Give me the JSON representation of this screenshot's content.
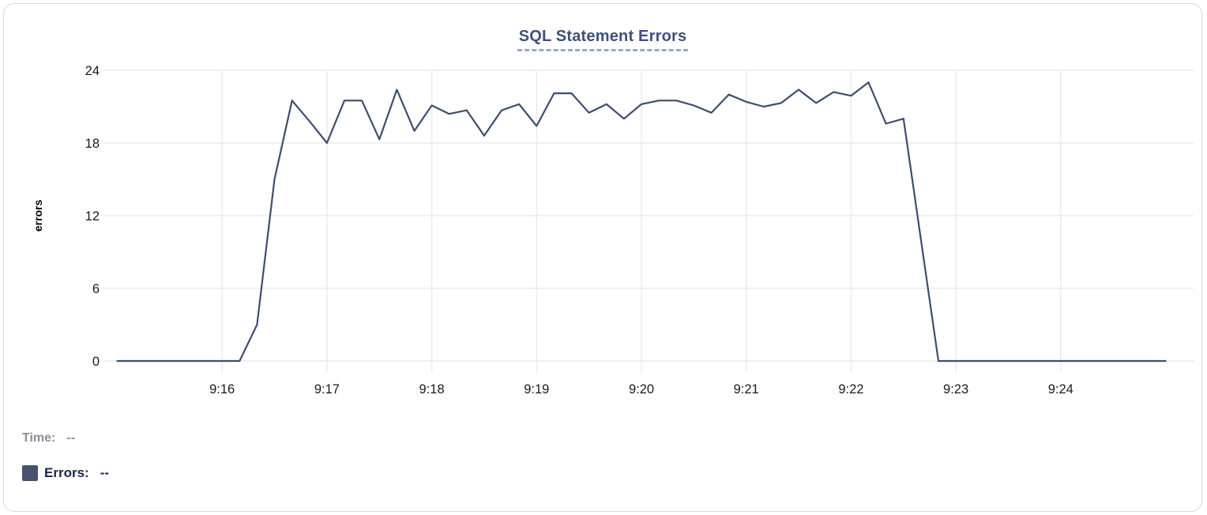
{
  "chart": {
    "title": "SQL Statement Errors"
  },
  "chart_data": {
    "type": "line",
    "title": "SQL Statement Errors",
    "xlabel": "",
    "ylabel": "errors",
    "ylim": [
      0,
      24
    ],
    "y_ticks": [
      0,
      6,
      12,
      18,
      24
    ],
    "x_tick_labels": [
      "9:16",
      "9:17",
      "9:18",
      "9:19",
      "9:20",
      "9:21",
      "9:22",
      "9:23",
      "9:24"
    ],
    "x_range": {
      "start_label": "9:15",
      "axis_span_seconds": 615
    },
    "grid": true,
    "legend_position": "bottom-left",
    "series": [
      {
        "name": "Errors",
        "color": "#3e4e6e",
        "start_time": "9:15:00",
        "interval_seconds": 10,
        "values": [
          0,
          0,
          0,
          0,
          0,
          0,
          0,
          0,
          3,
          15,
          21.5,
          19.8,
          18,
          21.5,
          21.5,
          18.3,
          22.4,
          19,
          21.1,
          20.4,
          20.7,
          18.6,
          20.7,
          21.2,
          19.4,
          22.1,
          22.1,
          20.5,
          21.2,
          20,
          21.2,
          21.5,
          21.5,
          21.1,
          20.5,
          22,
          21.4,
          21,
          21.3,
          22.4,
          21.3,
          22.2,
          21.9,
          23,
          19.6,
          20,
          10,
          0,
          0,
          0,
          0,
          0,
          0,
          0,
          0,
          0,
          0,
          0,
          0,
          0,
          0
        ]
      }
    ]
  },
  "readout": {
    "time_label": "Time:",
    "time_value": "--",
    "errors_label": "Errors:",
    "errors_value": "--",
    "swatch_color": "#47536e"
  },
  "colors": {
    "title": "#3e517a",
    "title_underline": "#9aaac9",
    "line": "#3e4e6e",
    "gridline": "#ececec",
    "tick_text": "#1a1a1a",
    "time_label": "#8a8f97",
    "errors_label": "#1a2550",
    "card_border": "#d9d9d9"
  }
}
